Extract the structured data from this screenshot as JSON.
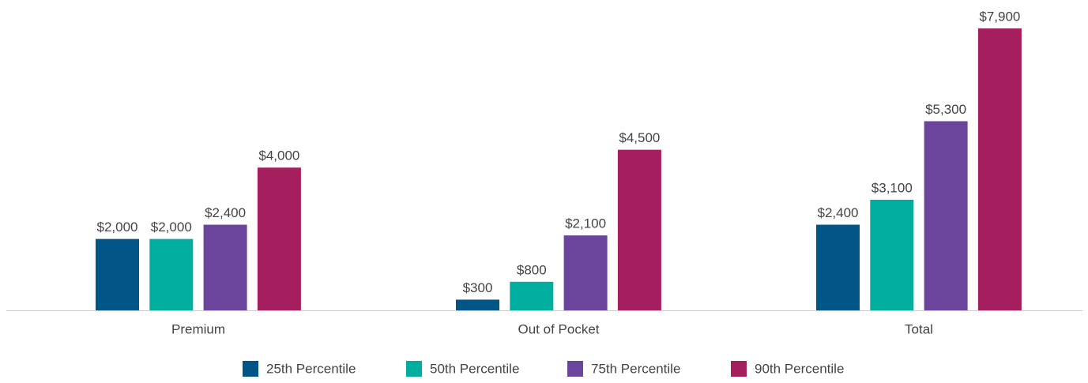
{
  "chart_data": {
    "type": "bar",
    "categories": [
      "Premium",
      "Out of Pocket",
      "Total"
    ],
    "series": [
      {
        "name": "25th Percentile",
        "color": "#005587",
        "values": [
          2000,
          300,
          2400
        ],
        "value_labels": [
          "$2,000",
          "$300",
          "$2,400"
        ]
      },
      {
        "name": "50th Percentile",
        "color": "#00ae9f",
        "values": [
          2000,
          800,
          3100
        ],
        "value_labels": [
          "$2,000",
          "$800",
          "$3,100"
        ]
      },
      {
        "name": "75th Percentile",
        "color": "#6b449b",
        "values": [
          2400,
          2100,
          5300
        ],
        "value_labels": [
          "$2,400",
          "$2,100",
          "$5,300"
        ]
      },
      {
        "name": "90th Percentile",
        "color": "#a51e5d",
        "values": [
          4000,
          4500,
          7900
        ],
        "value_labels": [
          "$4,000",
          "$4,500",
          "$7,900"
        ]
      }
    ],
    "legend": "bottom"
  }
}
